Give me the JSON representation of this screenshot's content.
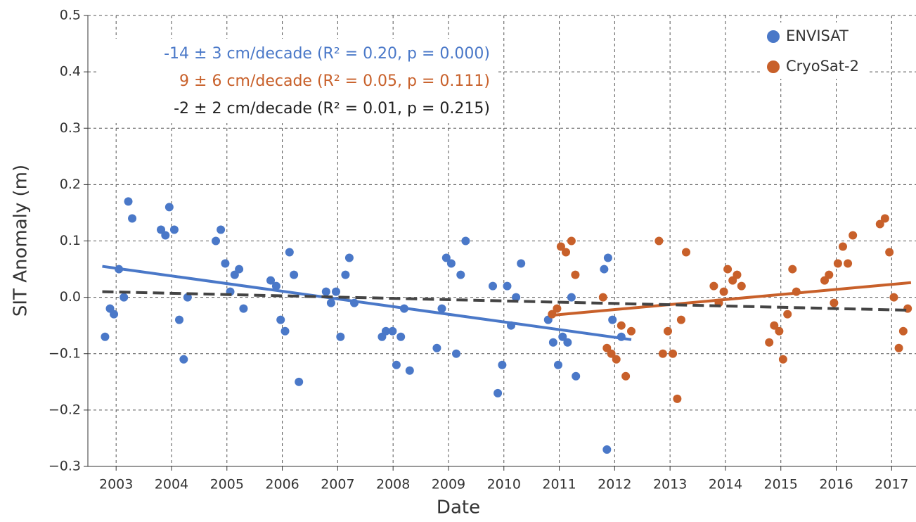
{
  "chart_data": {
    "type": "scatter",
    "x_label": "Date",
    "y_label": "SIT Anomaly (m)",
    "xlim": [
      2002.49,
      2017.44
    ],
    "ylim": [
      -0.3,
      0.5
    ],
    "xticks": [
      2003,
      2004,
      2005,
      2006,
      2007,
      2008,
      2009,
      2010,
      2011,
      2012,
      2013,
      2014,
      2015,
      2016,
      2017
    ],
    "yticks": [
      {
        "value": -0.3,
        "label": "−0.3"
      },
      {
        "value": -0.2,
        "label": "−0.2"
      },
      {
        "value": -0.1,
        "label": "−0.1"
      },
      {
        "value": 0,
        "label": "0.0"
      },
      {
        "value": 0.1,
        "label": "0.1"
      },
      {
        "value": 0.2,
        "label": "0.2"
      },
      {
        "value": 0.3,
        "label": "0.3"
      },
      {
        "value": 0.4,
        "label": "0.4"
      },
      {
        "value": 0.5,
        "label": "0.5"
      }
    ],
    "grid": true,
    "legend": "upper right",
    "series": [
      {
        "name": "ENVISAT",
        "color": "#4a78c8",
        "x": [
          2002.8,
          2002.89,
          2002.96,
          2003.05,
          2003.14,
          2003.22,
          2003.29,
          2003.81,
          2003.89,
          2003.96,
          2004.05,
          2004.14,
          2004.22,
          2004.29,
          2004.8,
          2004.89,
          2004.97,
          2005.06,
          2005.14,
          2005.22,
          2005.3,
          2005.79,
          2005.89,
          2005.97,
          2006.05,
          2006.13,
          2006.21,
          2006.3,
          2006.79,
          2006.88,
          2006.97,
          2007.05,
          2007.14,
          2007.21,
          2007.3,
          2007.8,
          2007.87,
          2007.99,
          2008.06,
          2008.14,
          2008.2,
          2008.3,
          2008.79,
          2008.88,
          2008.96,
          2009.05,
          2009.14,
          2009.22,
          2009.31,
          2009.8,
          2009.89,
          2009.97,
          2010.06,
          2010.13,
          2010.22,
          2010.31,
          2010.8,
          2010.89,
          2010.98,
          2011.06,
          2011.15,
          2011.22,
          2011.3,
          2011.81,
          2011.88,
          2011.96,
          2012.12,
          2011.86
        ],
        "values": [
          -0.07,
          -0.02,
          -0.03,
          0.05,
          0.0,
          0.17,
          0.14,
          0.12,
          0.11,
          0.16,
          0.12,
          -0.04,
          -0.11,
          0.0,
          0.1,
          0.12,
          0.06,
          0.01,
          0.04,
          0.05,
          -0.02,
          0.03,
          0.02,
          -0.04,
          -0.06,
          0.08,
          0.04,
          -0.15,
          0.01,
          -0.01,
          0.01,
          -0.07,
          0.04,
          0.07,
          -0.01,
          -0.07,
          -0.06,
          -0.06,
          -0.12,
          -0.07,
          -0.02,
          -0.13,
          -0.09,
          -0.02,
          0.07,
          0.06,
          -0.1,
          0.04,
          0.1,
          0.02,
          -0.17,
          -0.12,
          0.02,
          -0.05,
          0.0,
          0.06,
          -0.04,
          -0.08,
          -0.12,
          -0.07,
          -0.08,
          0.0,
          -0.14,
          0.05,
          0.07,
          -0.04,
          -0.07,
          -0.27
        ]
      },
      {
        "name": "CryoSat-2",
        "color": "#c8602a",
        "x": [
          2010.87,
          2010.96,
          2011.03,
          2011.12,
          2011.22,
          2011.29,
          2011.79,
          2011.86,
          2011.94,
          2012.03,
          2012.12,
          2012.2,
          2012.3,
          2012.8,
          2012.87,
          2012.96,
          2013.05,
          2013.13,
          2013.2,
          2013.29,
          2013.79,
          2013.88,
          2013.97,
          2014.04,
          2014.13,
          2014.21,
          2014.29,
          2014.79,
          2014.88,
          2014.97,
          2015.04,
          2015.12,
          2015.21,
          2015.28,
          2015.79,
          2015.87,
          2015.96,
          2016.03,
          2016.12,
          2016.21,
          2016.3,
          2016.79,
          2016.88,
          2016.96,
          2017.04,
          2017.13,
          2017.21,
          2017.29
        ],
        "values": [
          -0.03,
          -0.02,
          0.09,
          0.08,
          0.1,
          0.04,
          0.0,
          -0.09,
          -0.1,
          -0.11,
          -0.05,
          -0.14,
          -0.06,
          0.1,
          -0.1,
          -0.06,
          -0.1,
          -0.18,
          -0.04,
          0.08,
          0.02,
          -0.01,
          0.01,
          0.05,
          0.03,
          0.04,
          0.02,
          -0.08,
          -0.05,
          -0.06,
          -0.11,
          -0.03,
          0.05,
          0.01,
          0.03,
          0.04,
          -0.01,
          0.06,
          0.09,
          0.06,
          0.11,
          0.13,
          0.14,
          0.08,
          0.0,
          -0.09,
          -0.06,
          -0.02
        ]
      }
    ],
    "trend_lines": [
      {
        "color": "#4a78c8",
        "dashed": false,
        "x": [
          2002.75,
          2012.3
        ],
        "values": [
          0.055,
          -0.075
        ]
      },
      {
        "color": "#c8602a",
        "dashed": false,
        "x": [
          2010.85,
          2017.35
        ],
        "values": [
          -0.032,
          0.026
        ]
      },
      {
        "color": "#444444",
        "dashed": true,
        "x": [
          2002.75,
          2017.35
        ],
        "values": [
          0.01,
          -0.023
        ]
      }
    ],
    "annotations": [
      {
        "text": "-14 ± 3 cm/decade (R² = 0.20, p = 0.000)",
        "color": "#4a78c8"
      },
      {
        "text": "9 ± 6 cm/decade (R² = 0.05, p = 0.111)",
        "color": "#c8602a"
      },
      {
        "text": "-2 ± 2 cm/decade (R² = 0.01, p = 0.215)",
        "color": "#222222"
      }
    ]
  }
}
